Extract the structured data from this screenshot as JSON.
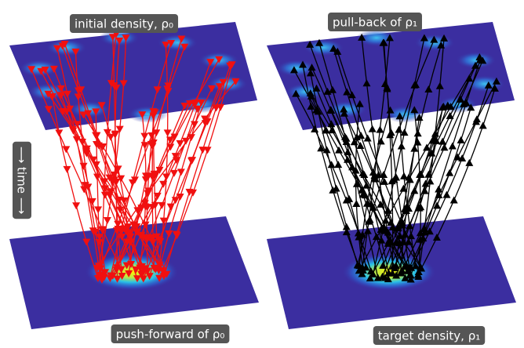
{
  "panels": [
    {
      "top_label": "initial density, ρ₀",
      "bottom_label": "push-forward of ρ₀"
    },
    {
      "top_label": "pull-back of ρ₁",
      "bottom_label": "target density, ρ₁"
    }
  ],
  "axis_label": "⟶ time ⟶"
}
